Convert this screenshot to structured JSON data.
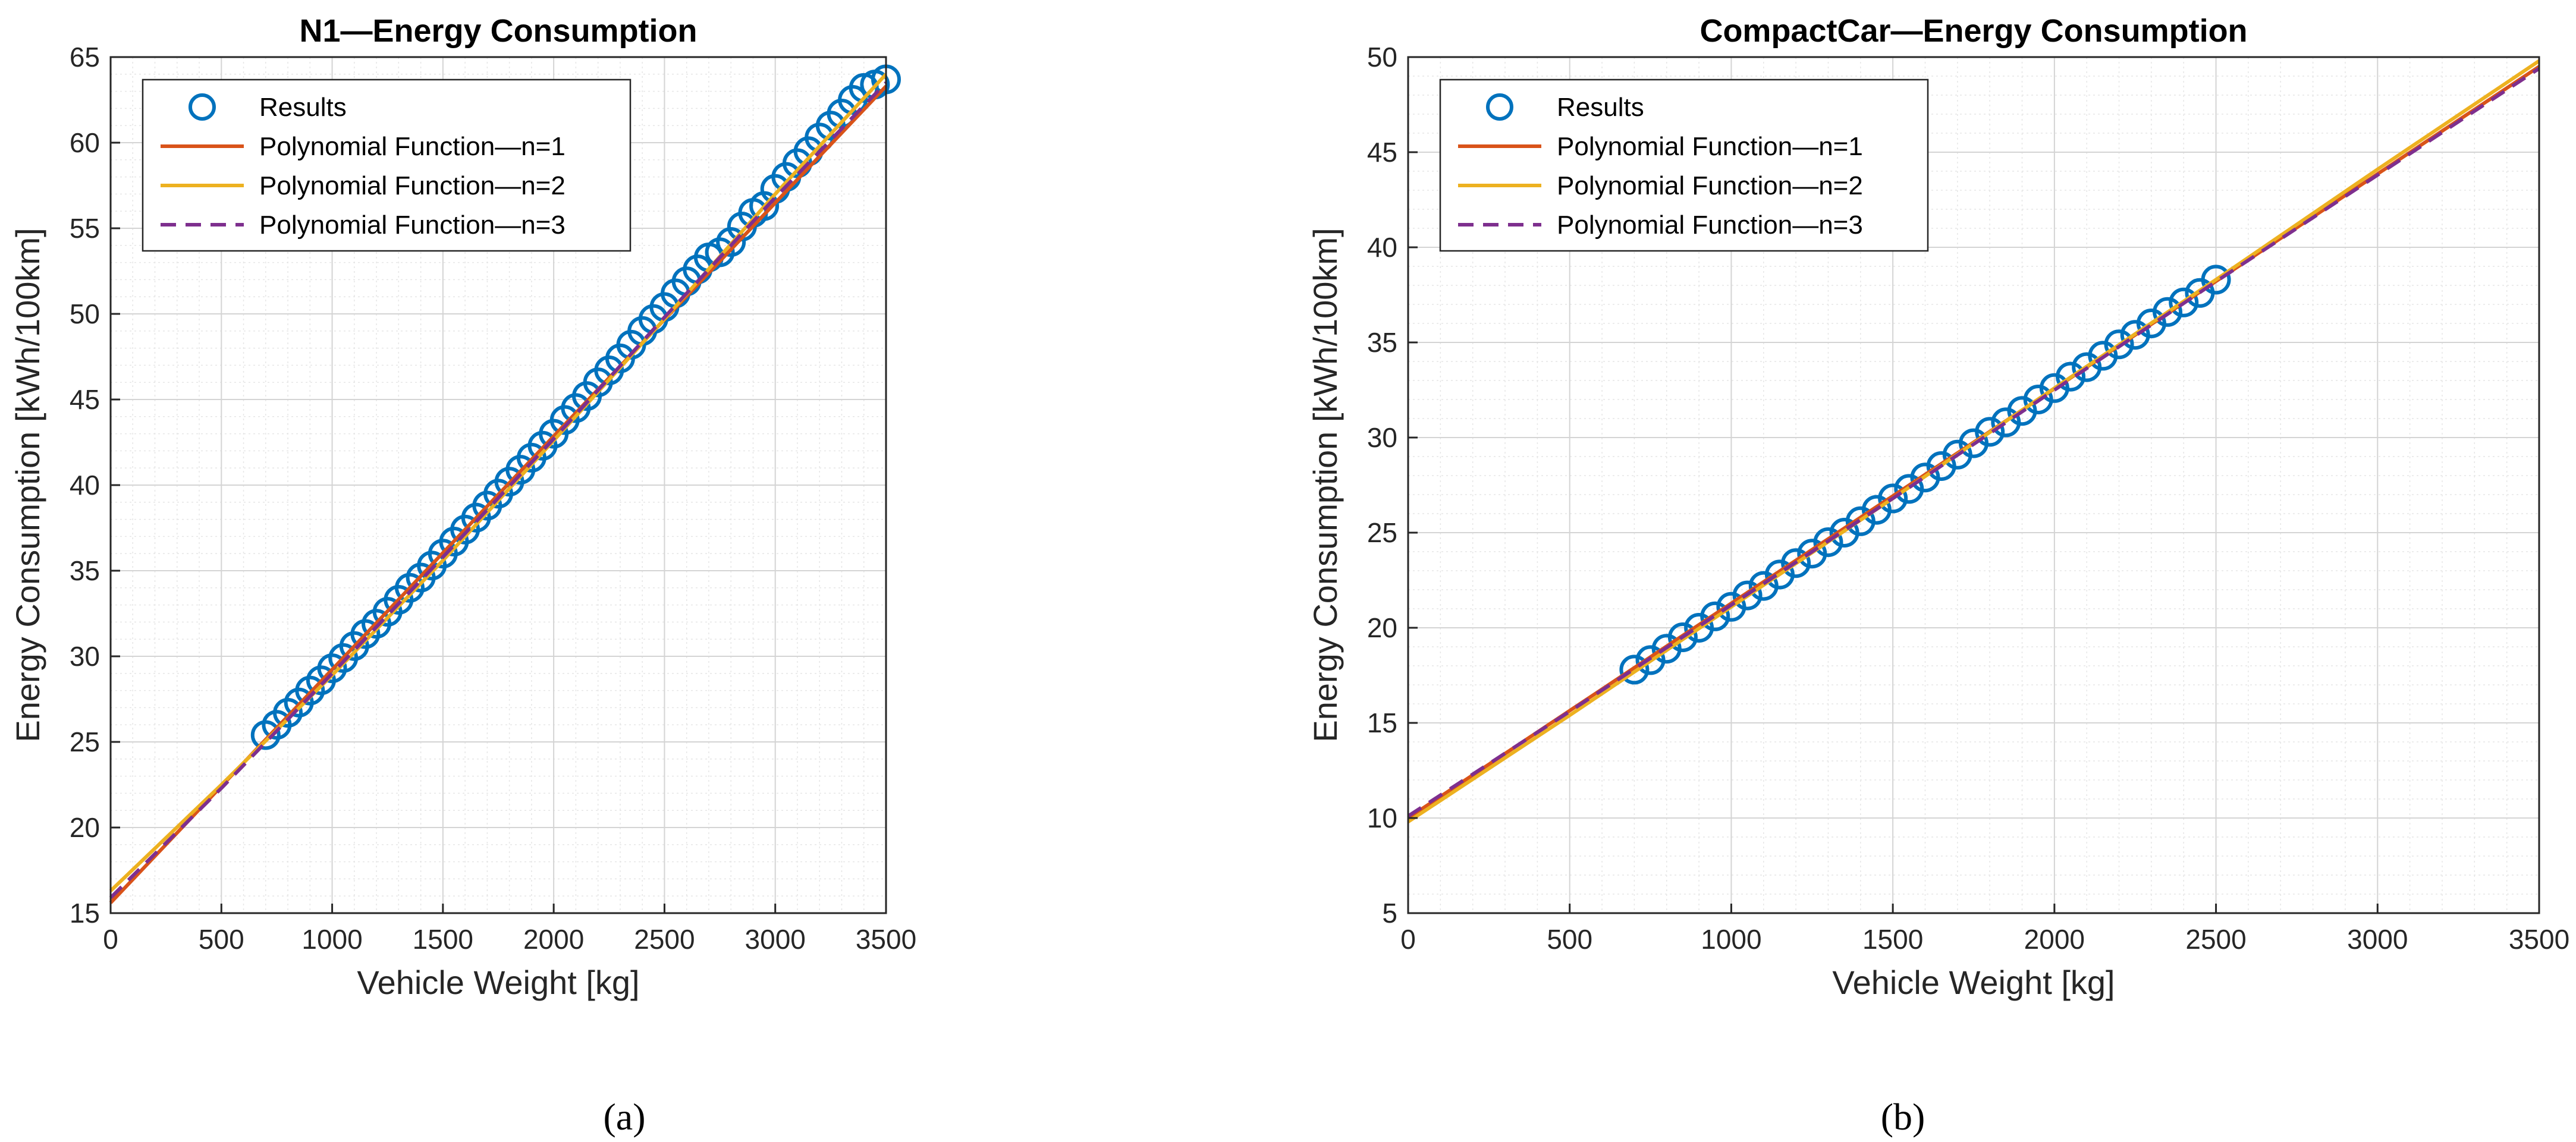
{
  "chart_data": [
    {
      "type": "line",
      "title": "N1—Energy Consumption",
      "xlabel": "Vehicle Weight [kg]",
      "ylabel": "Energy Consumption [kWh/100km]",
      "xlim": [
        0,
        3500
      ],
      "ylim": [
        15,
        65
      ],
      "xticks": [
        0,
        500,
        1000,
        1500,
        2000,
        2500,
        3000,
        3500
      ],
      "yticks": [
        15,
        20,
        25,
        30,
        35,
        40,
        45,
        50,
        55,
        60,
        65
      ],
      "grid": true,
      "minor_grid": true,
      "legend_position": "top-left",
      "caption": "(a)",
      "series": [
        {
          "name": "Results",
          "style": "markers",
          "color": "#0072BD",
          "x": [
            700,
            750,
            800,
            850,
            900,
            950,
            1000,
            1050,
            1100,
            1150,
            1200,
            1250,
            1300,
            1350,
            1400,
            1450,
            1500,
            1550,
            1600,
            1650,
            1700,
            1750,
            1800,
            1850,
            1900,
            1950,
            2000,
            2050,
            2100,
            2150,
            2200,
            2250,
            2300,
            2350,
            2400,
            2450,
            2500,
            2550,
            2600,
            2650,
            2700,
            2750,
            2800,
            2850,
            2900,
            2950,
            3000,
            3050,
            3100,
            3150,
            3200,
            3250,
            3300,
            3350,
            3400,
            3450,
            3500
          ],
          "y": [
            25.4,
            26.0,
            26.7,
            27.3,
            28.0,
            28.6,
            29.3,
            29.9,
            30.6,
            31.3,
            31.9,
            32.6,
            33.3,
            34.0,
            34.6,
            35.3,
            36.0,
            36.7,
            37.4,
            38.1,
            38.8,
            39.5,
            40.2,
            40.9,
            41.6,
            42.3,
            43.0,
            43.8,
            44.5,
            45.2,
            46.0,
            46.7,
            47.4,
            48.2,
            49.0,
            49.7,
            50.4,
            51.2,
            51.9,
            52.6,
            53.3,
            53.6,
            54.2,
            55.1,
            55.9,
            56.3,
            57.3,
            58.0,
            58.8,
            59.5,
            60.3,
            61.0,
            61.7,
            62.5,
            63.2,
            63.4,
            63.7
          ]
        },
        {
          "name": "Polynomial Function—n=1",
          "style": "solid",
          "color": "#D95319",
          "x": [
            0,
            3500
          ],
          "y": [
            15.6,
            63.3
          ]
        },
        {
          "name": "Polynomial Function—n=2",
          "style": "solid",
          "color": "#EDB120",
          "x": [
            0,
            500,
            1000,
            1500,
            2000,
            2500,
            3000,
            3500
          ],
          "y": [
            16.3,
            22.5,
            28.9,
            35.6,
            42.6,
            49.7,
            57.0,
            64.0
          ]
        },
        {
          "name": "Polynomial Function—n=3",
          "style": "dashed",
          "color": "#7E2F8E",
          "x": [
            0,
            500,
            1000,
            1500,
            2000,
            2500,
            3000,
            3500
          ],
          "y": [
            15.9,
            22.3,
            29.0,
            35.8,
            42.7,
            49.8,
            56.8,
            63.5
          ]
        }
      ]
    },
    {
      "type": "line",
      "title": "CompactCar—Energy Consumption",
      "xlabel": "Vehicle Weight [kg]",
      "ylabel": "Energy Consumption [kWh/100km]",
      "xlim": [
        0,
        3500
      ],
      "ylim": [
        5,
        50
      ],
      "xticks": [
        0,
        500,
        1000,
        1500,
        2000,
        2500,
        3000,
        3500
      ],
      "yticks": [
        5,
        10,
        15,
        20,
        25,
        30,
        35,
        40,
        45,
        50
      ],
      "grid": true,
      "minor_grid": true,
      "legend_position": "top-left",
      "caption": "(b)",
      "series": [
        {
          "name": "Results",
          "style": "markers",
          "color": "#0072BD",
          "x": [
            700,
            750,
            800,
            850,
            900,
            950,
            1000,
            1050,
            1100,
            1150,
            1200,
            1250,
            1300,
            1350,
            1400,
            1450,
            1500,
            1550,
            1600,
            1650,
            1700,
            1750,
            1800,
            1850,
            1900,
            1950,
            2000,
            2050,
            2100,
            2150,
            2200,
            2250,
            2300,
            2350,
            2400,
            2450,
            2500
          ],
          "y": [
            17.8,
            18.3,
            18.9,
            19.5,
            20.0,
            20.6,
            21.1,
            21.7,
            22.2,
            22.8,
            23.4,
            23.9,
            24.5,
            25.0,
            25.6,
            26.2,
            26.8,
            27.3,
            27.9,
            28.5,
            29.1,
            29.7,
            30.3,
            30.8,
            31.4,
            32.0,
            32.6,
            33.2,
            33.7,
            34.3,
            34.9,
            35.4,
            36.0,
            36.6,
            37.1,
            37.6,
            38.3
          ]
        },
        {
          "name": "Polynomial Function—n=1",
          "style": "solid",
          "color": "#D95319",
          "x": [
            0,
            3500
          ],
          "y": [
            10.0,
            49.5
          ]
        },
        {
          "name": "Polynomial Function—n=2",
          "style": "solid",
          "color": "#EDB120",
          "x": [
            0,
            500,
            1000,
            1500,
            2000,
            2500,
            3000,
            3500
          ],
          "y": [
            9.8,
            15.4,
            21.1,
            26.8,
            32.6,
            38.3,
            44.1,
            49.8
          ]
        },
        {
          "name": "Polynomial Function—n=3",
          "style": "dashed",
          "color": "#7E2F8E",
          "x": [
            0,
            500,
            1000,
            1500,
            2000,
            2500,
            3000,
            3500
          ],
          "y": [
            10.1,
            15.6,
            21.2,
            26.8,
            32.5,
            38.2,
            43.8,
            49.4
          ]
        }
      ]
    }
  ]
}
